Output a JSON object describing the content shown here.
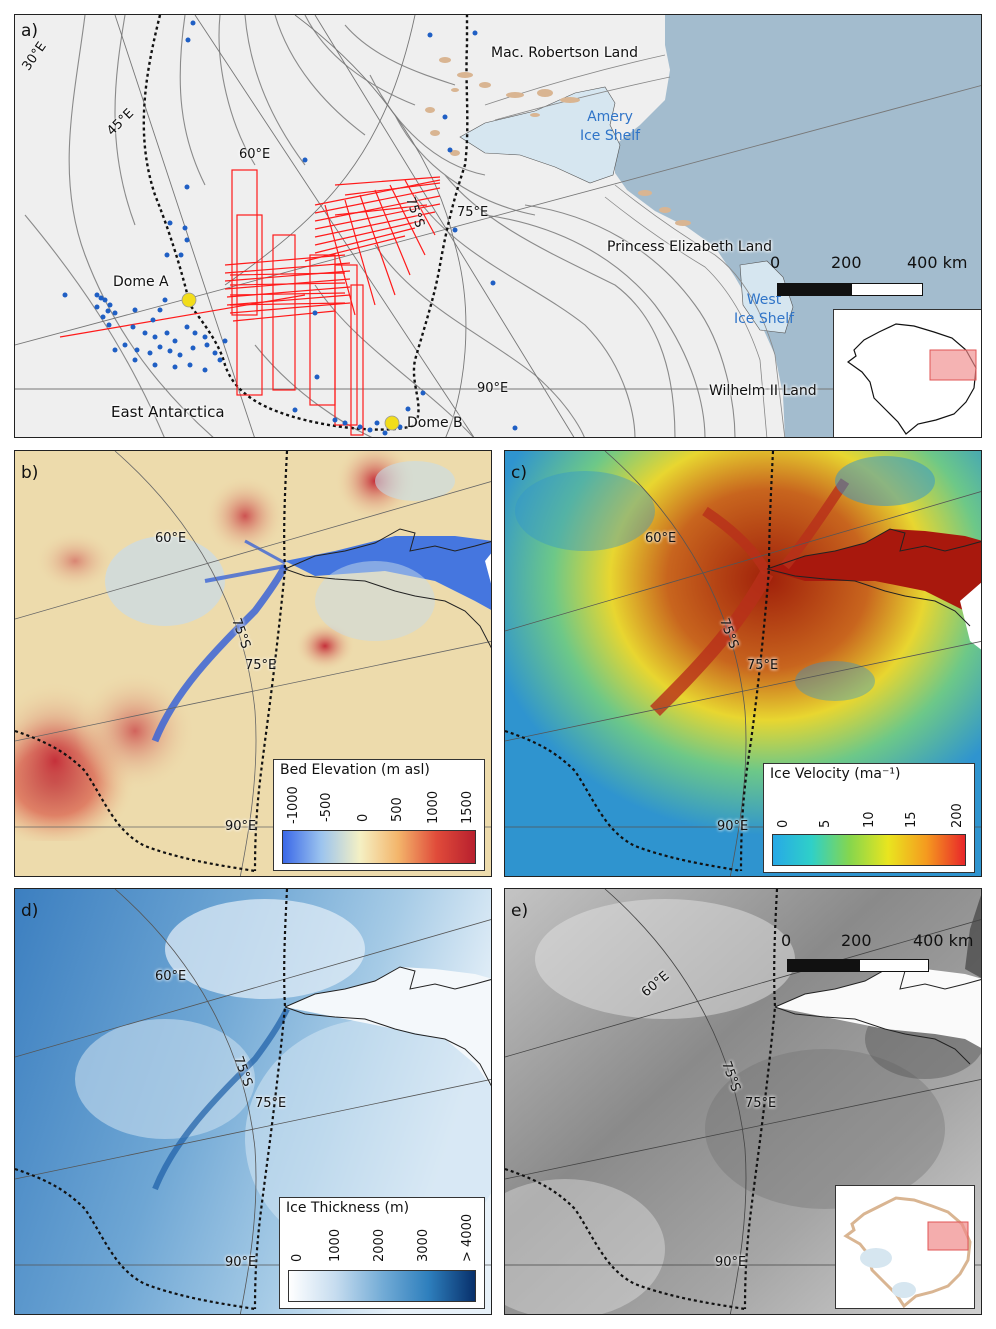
{
  "panels": {
    "a": {
      "label": "a)",
      "places": {
        "mac_robertson": "Mac. Robertson Land",
        "amery": "Amery\nIce Shelf",
        "princess_elizabeth": "Princess Elizabeth Land",
        "west_ice_shelf": "West\nIce Shelf",
        "wilhelm": "Wilhelm II Land",
        "east_antarctica": "East Antarctica",
        "dome_a": "Dome A",
        "dome_b": "Dome B"
      },
      "graticule": {
        "lon30": "30°E",
        "lon45": "45°E",
        "lon60": "60°E",
        "lon75": "75°E",
        "lon90": "90°E",
        "lat75": "75°S"
      },
      "scalebar": {
        "t0": "0",
        "t1": "200",
        "t2": "400 km"
      }
    },
    "b": {
      "label": "b)",
      "graticule": {
        "lon60": "60°E",
        "lon75": "75°E",
        "lon90": "90°E",
        "lat75": "75°S"
      },
      "legend": {
        "title": "Bed Elevation (m asl)",
        "ticks": [
          "-1000",
          "-500",
          "0",
          "500",
          "1000",
          "1500"
        ]
      }
    },
    "c": {
      "label": "c)",
      "graticule": {
        "lon60": "60°E",
        "lon75": "75°E",
        "lon90": "90°E",
        "lat75": "75°S"
      },
      "legend": {
        "title": "Ice Velocity (ma⁻¹)",
        "ticks": [
          "0",
          "5",
          "10",
          "15",
          "200"
        ]
      }
    },
    "d": {
      "label": "d)",
      "graticule": {
        "lon60": "60°E",
        "lon75": "75°E",
        "lon90": "90°E",
        "lat75": "75°S"
      },
      "legend": {
        "title": "Ice Thickness (m)",
        "ticks": [
          "0",
          "1000",
          "2000",
          "3000",
          "> 4000"
        ]
      }
    },
    "e": {
      "label": "e)",
      "graticule": {
        "lon60": "60°E",
        "lon75": "75°E",
        "lon90": "90°E",
        "lat75": "75°S"
      },
      "scalebar": {
        "t0": "0",
        "t1": "200",
        "t2": "400 km"
      }
    }
  },
  "colors": {
    "ocean": "#a3bcce",
    "ice_shelf": "#d6e6f0",
    "ice_sheet": "#efefef",
    "survey_lines": "#ff1a1a",
    "point_data": "#1f5fc4",
    "domes": "#f2dd1a",
    "rock": "#d9b592"
  },
  "colorbars": {
    "bed": [
      "#3a68e8",
      "#9cc4ee",
      "#f4f0c4",
      "#f3b56b",
      "#e04b3a",
      "#b8202e"
    ],
    "velocity": [
      "#27a9e6",
      "#2fd0c8",
      "#86d64d",
      "#e9e51f",
      "#f59a1f",
      "#e8262a"
    ],
    "thickness": [
      "#ffffff",
      "#c6dcef",
      "#74acd6",
      "#2e7fbd",
      "#08306b"
    ]
  }
}
